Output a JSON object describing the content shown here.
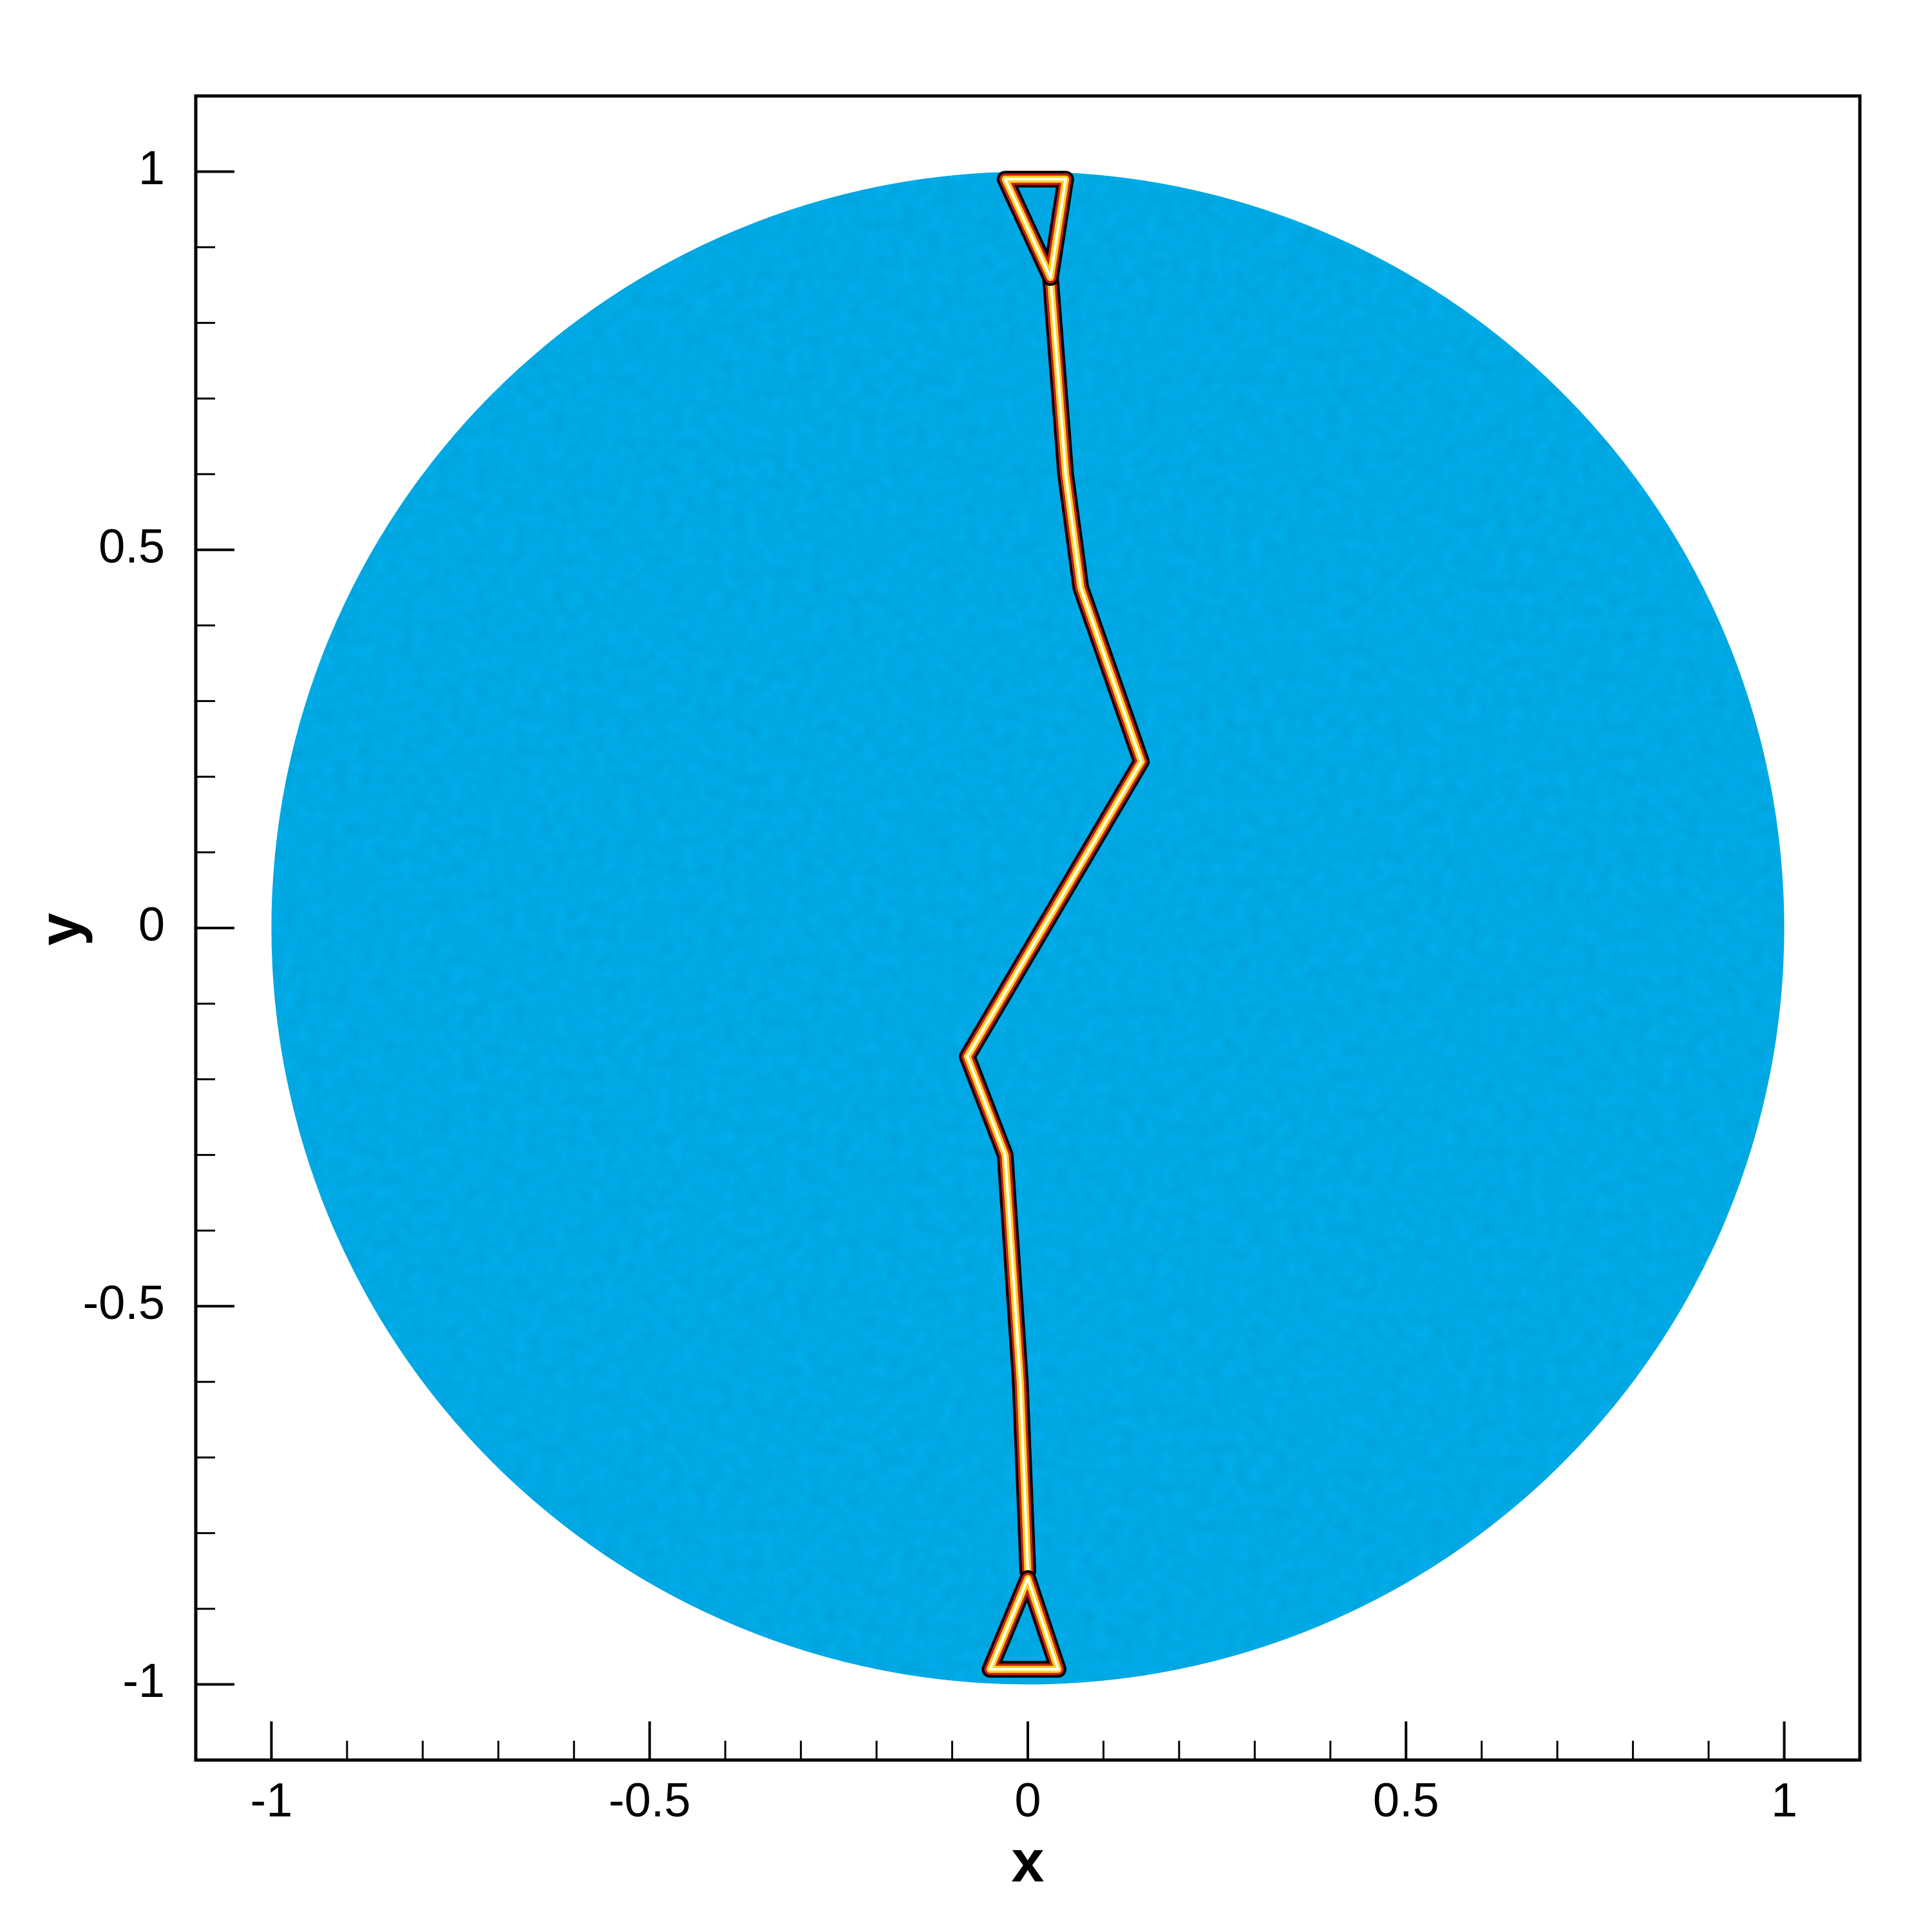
{
  "chart_data": {
    "type": "line",
    "xlabel": "x",
    "ylabel": "y",
    "xlim": [
      -1.1,
      1.1
    ],
    "ylim": [
      -1.1,
      1.1
    ],
    "xticks": [
      -1,
      -0.5,
      0,
      0.5,
      1
    ],
    "yticks": [
      -1,
      -0.5,
      0,
      0.5,
      1
    ],
    "minor_ticks": [
      -1,
      -0.9,
      -0.8,
      -0.7,
      -0.6,
      -0.5,
      -0.4,
      -0.3,
      -0.2,
      -0.1,
      0,
      0.1,
      0.2,
      0.3,
      0.4,
      0.5,
      0.6,
      0.7,
      0.8,
      0.9,
      1
    ],
    "disk": {
      "radius": 1,
      "color": "#00b0ef"
    },
    "series": [
      {
        "color": "#ffd21a",
        "x": [
          0.03,
          0.05,
          0.07,
          0.15,
          -0.08,
          -0.03,
          -0.01,
          0.0
        ],
        "values": [
          0.86,
          0.6,
          0.45,
          0.22,
          -0.17,
          -0.3,
          -0.6,
          -0.85
        ]
      },
      {
        "color": "#ffd21a",
        "x": [
          -0.03,
          0.03,
          0.05,
          -0.03
        ],
        "values": [
          0.99,
          0.86,
          0.99,
          0.99
        ]
      },
      {
        "color": "#ffd21a",
        "x": [
          0.0,
          -0.05,
          0.04,
          0.0
        ],
        "values": [
          -0.86,
          -0.98,
          -0.98,
          -0.86
        ]
      }
    ]
  }
}
